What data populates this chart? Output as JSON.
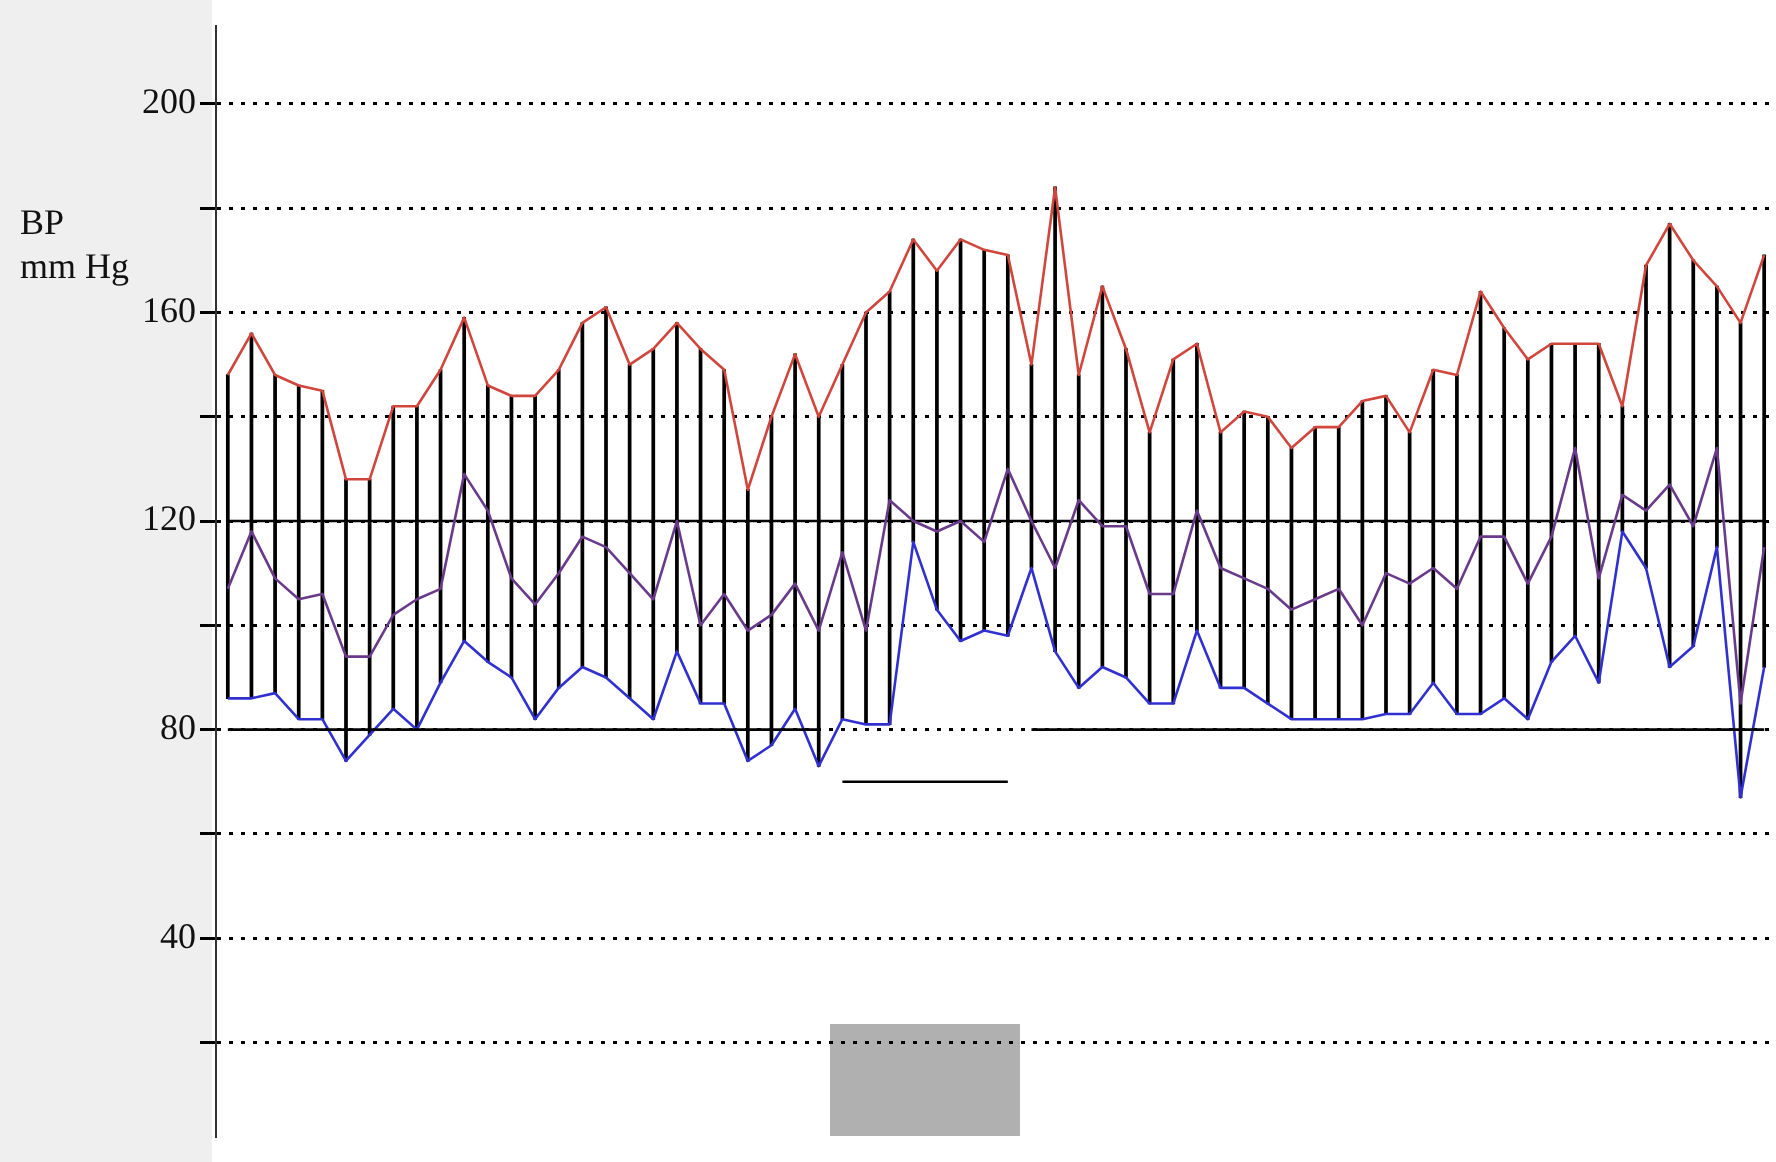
{
  "chart_data": {
    "type": "line",
    "ylabel": "BP\nmm Hg",
    "categories": [
      null,
      null,
      null,
      null,
      null,
      null,
      null,
      null,
      null,
      null,
      null,
      null,
      null,
      null,
      null,
      null,
      null,
      null,
      null,
      null,
      null,
      null,
      null,
      null,
      null,
      null,
      null,
      null,
      null,
      null,
      null,
      null,
      null,
      null,
      null,
      null,
      null,
      null,
      null,
      null,
      null,
      null,
      null,
      null,
      null,
      null,
      null,
      null,
      null,
      null,
      null,
      null,
      null,
      null,
      null,
      null,
      null,
      null,
      null,
      null,
      null,
      null,
      null,
      null,
      null,
      null
    ],
    "series": [
      {
        "type": "bar",
        "color": "#000000",
        "base": [
          86,
          86,
          87,
          82,
          82,
          74,
          79,
          84,
          80,
          89,
          97,
          93,
          90,
          82,
          88,
          92,
          90,
          86,
          82,
          95,
          85,
          85,
          74,
          77,
          84,
          73,
          82,
          81,
          81,
          116,
          103,
          97,
          99,
          98,
          111,
          95,
          88,
          92,
          90,
          85,
          85,
          99,
          88,
          88,
          85,
          82,
          82,
          82,
          82,
          83,
          83,
          89,
          83,
          83,
          86,
          82,
          93,
          98,
          89,
          118,
          111,
          92,
          96,
          115,
          67,
          92
        ],
        "values": [
          62,
          70,
          61,
          64,
          63,
          54,
          49,
          58,
          62,
          60,
          62,
          53,
          54,
          62,
          61,
          66,
          71,
          64,
          71,
          63,
          68,
          64,
          52,
          63,
          68,
          67,
          68,
          79,
          83,
          58,
          65,
          77,
          73,
          73,
          39,
          89,
          60,
          73,
          63,
          52,
          66,
          55,
          49,
          53,
          55,
          52,
          56,
          56,
          61,
          61,
          54,
          60,
          65,
          81,
          71,
          69,
          61,
          56,
          65,
          24,
          58,
          85,
          74,
          50,
          91,
          79
        ]
      },
      {
        "color": "#d0463c",
        "values": [
          148,
          156,
          148,
          146,
          145,
          128,
          128,
          142,
          142,
          149,
          159,
          146,
          144,
          144,
          149,
          158,
          161,
          150,
          153,
          158,
          153,
          149,
          126,
          140,
          152,
          140,
          150,
          160,
          164,
          174,
          168,
          174,
          172,
          171,
          150,
          184,
          148,
          165,
          153,
          137,
          151,
          154,
          137,
          141,
          140,
          134,
          138,
          138,
          143,
          144,
          137,
          149,
          148,
          164,
          157,
          151,
          154,
          154,
          154,
          142,
          169,
          177,
          170,
          165,
          158,
          171
        ]
      },
      {
        "color": "#6a3a8a",
        "values": [
          107,
          118,
          109,
          105,
          106,
          94,
          94,
          102,
          105,
          107,
          129,
          122,
          109,
          104,
          110,
          117,
          115,
          110,
          105,
          120,
          100,
          106,
          99,
          102,
          108,
          99,
          114,
          99,
          124,
          120,
          118,
          120,
          116,
          130,
          120,
          111,
          124,
          119,
          119,
          106,
          106,
          122,
          111,
          109,
          107,
          103,
          105,
          107,
          100,
          110,
          108,
          111,
          107,
          117,
          117,
          108,
          117,
          134,
          109,
          125,
          122,
          127,
          119,
          134,
          85,
          115
        ]
      },
      {
        "color": "#3030d0",
        "values": [
          86,
          86,
          87,
          82,
          82,
          74,
          79,
          84,
          80,
          89,
          97,
          93,
          90,
          82,
          88,
          92,
          90,
          86,
          82,
          95,
          85,
          85,
          74,
          77,
          84,
          73,
          82,
          81,
          81,
          116,
          103,
          97,
          99,
          98,
          111,
          95,
          88,
          92,
          90,
          85,
          85,
          99,
          88,
          88,
          85,
          82,
          82,
          82,
          82,
          83,
          83,
          89,
          83,
          83,
          86,
          82,
          93,
          98,
          89,
          118,
          111,
          92,
          96,
          115,
          67,
          92
        ]
      },
      {
        "type": "line",
        "color": "#000000",
        "values": [
          120,
          120,
          120,
          120,
          120,
          120,
          120,
          120,
          120,
          120,
          120,
          120,
          120,
          120,
          120,
          120,
          120,
          120,
          120,
          120,
          120,
          120,
          120,
          120,
          120,
          120,
          120,
          120,
          120,
          120,
          120,
          120,
          120,
          120,
          120,
          120,
          120,
          120,
          120,
          120,
          120,
          120,
          120,
          120,
          120,
          120,
          120,
          120,
          120,
          120,
          120,
          120,
          120,
          120,
          120,
          120,
          120,
          120,
          120,
          120,
          120,
          120,
          120,
          120,
          120,
          120
        ]
      },
      {
        "type": "line",
        "color": "#000000",
        "values": [
          80,
          80,
          80,
          80,
          80,
          80,
          80,
          80,
          80,
          80,
          80,
          80,
          80,
          80,
          80,
          80,
          80,
          80,
          80,
          80,
          80,
          80,
          80,
          80,
          80,
          80,
          null,
          null,
          null,
          null,
          null,
          null,
          null,
          null,
          80,
          80,
          80,
          80,
          80,
          80,
          80,
          80,
          80,
          80,
          80,
          80,
          80,
          80,
          80,
          80,
          80,
          80,
          80,
          80,
          80,
          80,
          80,
          80,
          80,
          80,
          80,
          80,
          80,
          80,
          80,
          80
        ]
      },
      {
        "type": "line",
        "color": "#000000",
        "values": [
          null,
          null,
          null,
          null,
          null,
          null,
          null,
          null,
          null,
          null,
          null,
          null,
          null,
          null,
          null,
          null,
          null,
          null,
          null,
          null,
          null,
          null,
          null,
          null,
          null,
          null,
          70,
          70,
          70,
          70,
          70,
          70,
          70,
          70,
          null,
          null,
          null,
          null,
          null,
          null,
          null,
          null,
          null,
          null,
          null,
          null,
          null,
          null,
          null,
          null,
          null,
          null,
          null,
          null,
          null,
          null,
          null,
          null,
          null,
          null,
          null,
          null,
          null,
          null,
          null,
          null
        ]
      }
    ],
    "ylim": [
      2,
      215
    ],
    "yticks": [
      {
        "value": 20,
        "label": null
      },
      40,
      {
        "value": 60,
        "label": null
      },
      80,
      {
        "value": 100,
        "label": null
      },
      120,
      {
        "value": 140,
        "label": null
      },
      160,
      {
        "value": 180,
        "label": null
      },
      200
    ],
    "tick_labels": "y",
    "grid": "y",
    "legend": false,
    "marker": "none",
    "line_style": "solid"
  }
}
